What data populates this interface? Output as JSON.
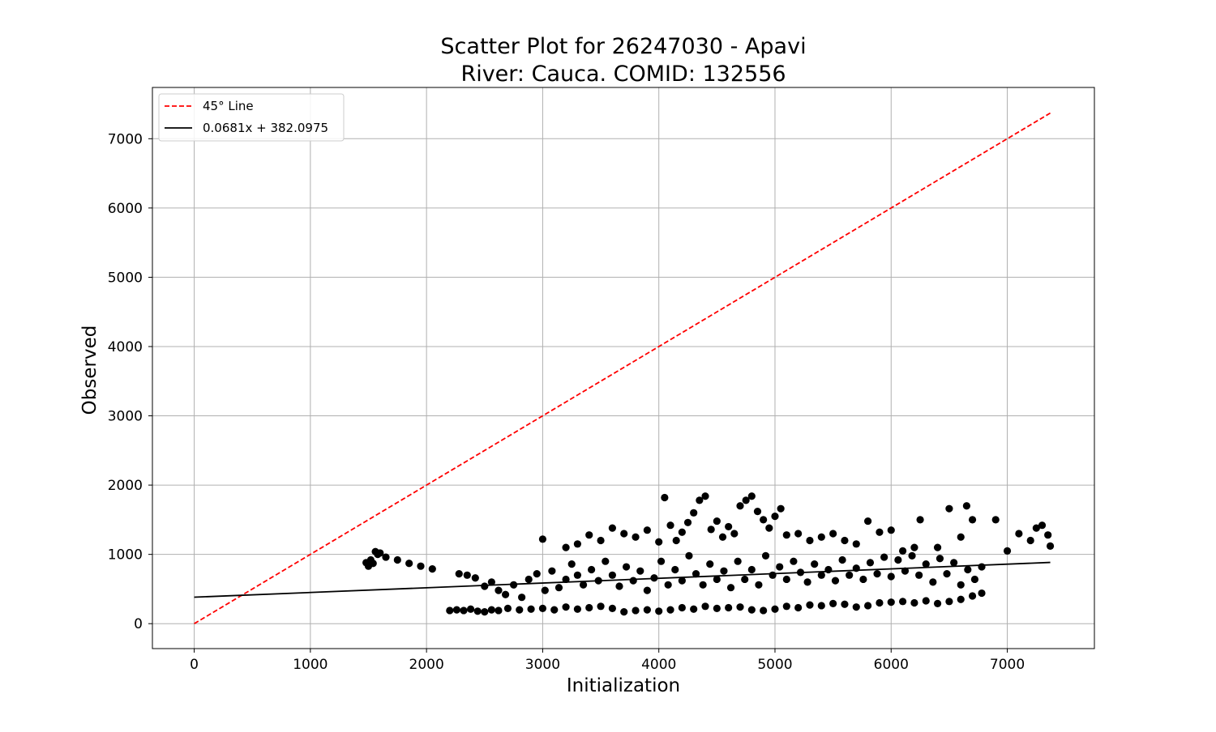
{
  "chart_data": {
    "type": "scatter",
    "title_line1": "Scatter Plot for 26247030 - Apavi",
    "title_line2": "River: Cauca. COMID: 132556",
    "xlabel": "Initialization",
    "ylabel": "Observed",
    "xlim": [
      -360,
      7750
    ],
    "ylim": [
      -360,
      7740
    ],
    "xticks": [
      0,
      1000,
      2000,
      3000,
      4000,
      5000,
      6000,
      7000
    ],
    "yticks": [
      0,
      1000,
      2000,
      3000,
      4000,
      5000,
      6000,
      7000
    ],
    "grid": true,
    "legend": {
      "placement": "upper-left",
      "entries": [
        {
          "label": "45$^\\circ$ Line",
          "display": "45° Line",
          "color": "#ff0000",
          "style": "dashed"
        },
        {
          "label": "$0.0681x + 382.0975$",
          "display": "0.0681x + 382.0975",
          "color": "#000000",
          "style": "solid"
        }
      ]
    },
    "lines": [
      {
        "name": "45° Line",
        "color": "#ff0000",
        "style": "dashed",
        "x": [
          0,
          7370
        ],
        "y": [
          0,
          7370
        ]
      },
      {
        "name": "0.0681x + 382.0975",
        "color": "#000000",
        "style": "solid",
        "slope": 0.0681,
        "intercept": 382.0975,
        "x": [
          0,
          7370
        ]
      }
    ],
    "series": [
      {
        "color": "#000000",
        "points": [
          [
            1480,
            880
          ],
          [
            1500,
            830
          ],
          [
            1520,
            920
          ],
          [
            1540,
            870
          ],
          [
            1560,
            1040
          ],
          [
            1580,
            1000
          ],
          [
            1600,
            1020
          ],
          [
            1650,
            960
          ],
          [
            1750,
            920
          ],
          [
            1850,
            870
          ],
          [
            1950,
            830
          ],
          [
            2050,
            790
          ],
          [
            2200,
            190
          ],
          [
            2260,
            200
          ],
          [
            2320,
            190
          ],
          [
            2380,
            210
          ],
          [
            2440,
            180
          ],
          [
            2500,
            170
          ],
          [
            2560,
            200
          ],
          [
            2620,
            190
          ],
          [
            2700,
            220
          ],
          [
            2800,
            200
          ],
          [
            2900,
            210
          ],
          [
            3000,
            220
          ],
          [
            3100,
            200
          ],
          [
            3200,
            240
          ],
          [
            3300,
            210
          ],
          [
            3400,
            230
          ],
          [
            3500,
            250
          ],
          [
            3600,
            220
          ],
          [
            3700,
            170
          ],
          [
            3800,
            190
          ],
          [
            3900,
            200
          ],
          [
            4000,
            180
          ],
          [
            4100,
            200
          ],
          [
            4200,
            230
          ],
          [
            4300,
            210
          ],
          [
            4400,
            250
          ],
          [
            4500,
            220
          ],
          [
            4600,
            230
          ],
          [
            4700,
            240
          ],
          [
            4800,
            200
          ],
          [
            4900,
            190
          ],
          [
            5000,
            210
          ],
          [
            5100,
            250
          ],
          [
            5200,
            230
          ],
          [
            5300,
            270
          ],
          [
            5400,
            260
          ],
          [
            5500,
            290
          ],
          [
            5600,
            280
          ],
          [
            5700,
            240
          ],
          [
            5800,
            260
          ],
          [
            5900,
            300
          ],
          [
            6000,
            310
          ],
          [
            6100,
            320
          ],
          [
            6200,
            300
          ],
          [
            6300,
            330
          ],
          [
            6400,
            290
          ],
          [
            6500,
            320
          ],
          [
            6600,
            350
          ],
          [
            6700,
            400
          ],
          [
            6780,
            440
          ],
          [
            2280,
            720
          ],
          [
            2350,
            700
          ],
          [
            2420,
            660
          ],
          [
            2500,
            540
          ],
          [
            2560,
            600
          ],
          [
            2620,
            480
          ],
          [
            2680,
            420
          ],
          [
            2750,
            560
          ],
          [
            2820,
            380
          ],
          [
            2880,
            640
          ],
          [
            2950,
            720
          ],
          [
            3020,
            480
          ],
          [
            3080,
            760
          ],
          [
            3140,
            520
          ],
          [
            3200,
            640
          ],
          [
            3250,
            860
          ],
          [
            3300,
            700
          ],
          [
            3350,
            560
          ],
          [
            3420,
            780
          ],
          [
            3480,
            620
          ],
          [
            3540,
            900
          ],
          [
            3600,
            700
          ],
          [
            3660,
            540
          ],
          [
            3720,
            820
          ],
          [
            3780,
            620
          ],
          [
            3840,
            760
          ],
          [
            3900,
            480
          ],
          [
            3960,
            660
          ],
          [
            4020,
            900
          ],
          [
            4080,
            560
          ],
          [
            4140,
            780
          ],
          [
            4200,
            620
          ],
          [
            4260,
            980
          ],
          [
            4320,
            720
          ],
          [
            4380,
            560
          ],
          [
            4440,
            860
          ],
          [
            4500,
            640
          ],
          [
            4560,
            760
          ],
          [
            4620,
            520
          ],
          [
            4680,
            900
          ],
          [
            4740,
            640
          ],
          [
            4800,
            780
          ],
          [
            4860,
            560
          ],
          [
            4920,
            980
          ],
          [
            4980,
            700
          ],
          [
            5040,
            820
          ],
          [
            5100,
            640
          ],
          [
            5160,
            900
          ],
          [
            5220,
            740
          ],
          [
            5280,
            600
          ],
          [
            5340,
            860
          ],
          [
            5400,
            700
          ],
          [
            5460,
            780
          ],
          [
            5520,
            620
          ],
          [
            5580,
            920
          ],
          [
            5640,
            700
          ],
          [
            5700,
            800
          ],
          [
            5760,
            640
          ],
          [
            5820,
            880
          ],
          [
            5880,
            720
          ],
          [
            5940,
            960
          ],
          [
            6000,
            680
          ],
          [
            6060,
            920
          ],
          [
            6120,
            760
          ],
          [
            6180,
            980
          ],
          [
            6240,
            700
          ],
          [
            6300,
            860
          ],
          [
            6360,
            600
          ],
          [
            6420,
            940
          ],
          [
            6480,
            720
          ],
          [
            6540,
            880
          ],
          [
            6600,
            560
          ],
          [
            6660,
            780
          ],
          [
            6720,
            640
          ],
          [
            6780,
            820
          ],
          [
            3000,
            1220
          ],
          [
            3200,
            1100
          ],
          [
            3300,
            1150
          ],
          [
            3400,
            1280
          ],
          [
            3500,
            1200
          ],
          [
            3600,
            1380
          ],
          [
            3700,
            1300
          ],
          [
            3800,
            1250
          ],
          [
            3900,
            1350
          ],
          [
            4000,
            1180
          ],
          [
            4050,
            1820
          ],
          [
            4100,
            1420
          ],
          [
            4150,
            1200
          ],
          [
            4200,
            1320
          ],
          [
            4250,
            1460
          ],
          [
            4300,
            1600
          ],
          [
            4350,
            1780
          ],
          [
            4400,
            1840
          ],
          [
            4450,
            1360
          ],
          [
            4500,
            1480
          ],
          [
            4550,
            1250
          ],
          [
            4600,
            1400
          ],
          [
            4650,
            1300
          ],
          [
            4700,
            1700
          ],
          [
            4750,
            1780
          ],
          [
            4800,
            1840
          ],
          [
            4850,
            1620
          ],
          [
            4900,
            1500
          ],
          [
            4950,
            1380
          ],
          [
            5000,
            1550
          ],
          [
            5050,
            1660
          ],
          [
            5100,
            1280
          ],
          [
            5200,
            1300
          ],
          [
            5300,
            1200
          ],
          [
            5400,
            1250
          ],
          [
            5500,
            1300
          ],
          [
            5600,
            1200
          ],
          [
            5700,
            1150
          ],
          [
            5800,
            1480
          ],
          [
            5900,
            1320
          ],
          [
            6000,
            1350
          ],
          [
            6100,
            1050
          ],
          [
            6200,
            1100
          ],
          [
            6250,
            1500
          ],
          [
            6400,
            1100
          ],
          [
            6500,
            1660
          ],
          [
            6600,
            1250
          ],
          [
            6650,
            1700
          ],
          [
            6700,
            1500
          ],
          [
            6900,
            1500
          ],
          [
            7000,
            1050
          ],
          [
            7100,
            1300
          ],
          [
            7200,
            1200
          ],
          [
            7250,
            1380
          ],
          [
            7300,
            1420
          ],
          [
            7350,
            1280
          ],
          [
            7370,
            1120
          ]
        ]
      }
    ]
  }
}
